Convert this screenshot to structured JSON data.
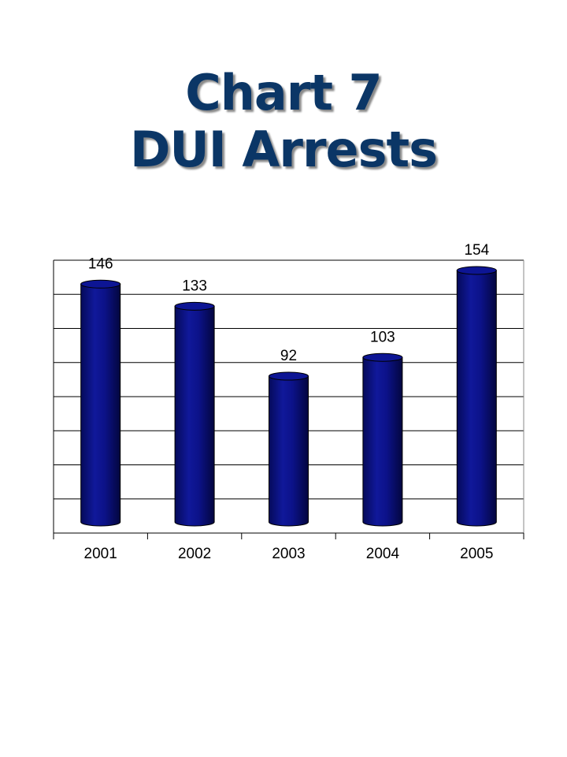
{
  "title_lines": [
    "Chart 7",
    "DUI Arrests"
  ],
  "chart_data": {
    "type": "bar",
    "title": "Chart 7 DUI Arrests",
    "categories": [
      "2001",
      "2002",
      "2003",
      "2004",
      "2005"
    ],
    "values": [
      146,
      133,
      92,
      103,
      154
    ],
    "xlabel": "",
    "ylabel": "",
    "ylim": [
      0,
      160
    ],
    "grid": true,
    "legend": "none",
    "bar_color": "#0a0f82"
  }
}
